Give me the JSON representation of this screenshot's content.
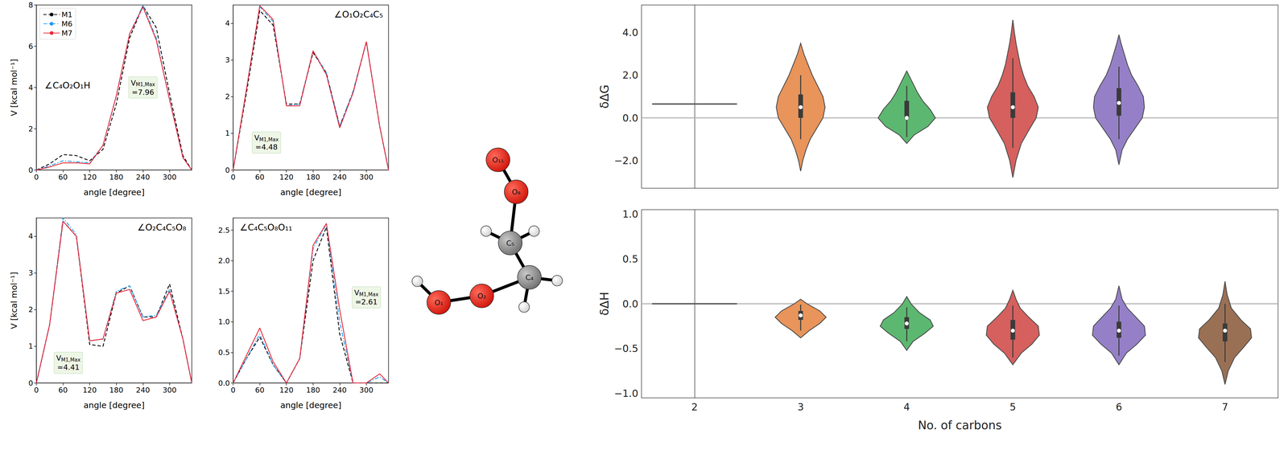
{
  "chart_data": [
    {
      "type": "line",
      "title": "∠C₄O₂O₁H",
      "xlabel": "angle [degree]",
      "ylabel": "V [kcal mol⁻¹]",
      "x": [
        0,
        30,
        60,
        90,
        120,
        150,
        180,
        210,
        240,
        270,
        300,
        330,
        350
      ],
      "xlim": [
        0,
        350
      ],
      "xticks": [
        0,
        60,
        120,
        180,
        240,
        300
      ],
      "ylim": [
        0,
        8
      ],
      "yticks": [
        0,
        2,
        4,
        6,
        8
      ],
      "legend": "upper left",
      "annotation": {
        "text": "V",
        "subscript": "M1,Max",
        "label": "=7.96"
      },
      "series": [
        {
          "name": "M1",
          "color": "#000000",
          "line_style": "dashed",
          "values": [
            0,
            0.3,
            0.75,
            0.7,
            0.45,
            1.0,
            3.2,
            6.4,
            7.96,
            6.9,
            3.7,
            0.7,
            0
          ]
        },
        {
          "name": "M6",
          "color": "#1e9bf0",
          "line_style": "dashdot",
          "values": [
            0,
            0.2,
            0.45,
            0.4,
            0.35,
            1.2,
            3.6,
            6.6,
            7.98,
            6.4,
            3.4,
            0.6,
            0
          ]
        },
        {
          "name": "M7",
          "color": "#e8273a",
          "line_style": "solid",
          "values": [
            0,
            0.15,
            0.35,
            0.35,
            0.3,
            1.2,
            3.6,
            6.6,
            7.9,
            6.3,
            3.4,
            0.6,
            0
          ]
        }
      ]
    },
    {
      "type": "line",
      "title": "∠O₁O₂C₄C₅",
      "xlabel": "angle [degree]",
      "x": [
        0,
        30,
        60,
        90,
        120,
        150,
        180,
        210,
        240,
        270,
        300,
        330,
        350
      ],
      "xlim": [
        0,
        350
      ],
      "xticks": [
        0,
        60,
        120,
        180,
        240,
        300
      ],
      "ylim": [
        0,
        4.5
      ],
      "yticks": [
        0,
        1,
        2,
        3,
        4
      ],
      "annotation": {
        "text": "V",
        "subscript": "M1,Max",
        "label": "=4.48"
      },
      "series": [
        {
          "name": "M1",
          "color": "#000000",
          "line_style": "dashed",
          "values": [
            0,
            2.1,
            4.35,
            3.95,
            1.8,
            1.8,
            3.2,
            2.65,
            1.2,
            2.1,
            3.5,
            1.2,
            0
          ]
        },
        {
          "name": "M6",
          "color": "#1e9bf0",
          "line_style": "dashdot",
          "values": [
            0,
            2.2,
            4.45,
            4.05,
            1.75,
            1.8,
            3.25,
            2.65,
            1.2,
            2.15,
            3.5,
            1.2,
            0
          ]
        },
        {
          "name": "M7",
          "color": "#e8273a",
          "line_style": "solid",
          "values": [
            0,
            2.2,
            4.48,
            4.1,
            1.75,
            1.75,
            3.25,
            2.6,
            1.15,
            2.1,
            3.5,
            1.2,
            0
          ]
        }
      ]
    },
    {
      "type": "line",
      "title": "∠O₂C₄C₅O₈",
      "xlabel": "angle [degree]",
      "ylabel": "V [kcal mol⁻¹]",
      "x": [
        0,
        30,
        60,
        90,
        120,
        150,
        180,
        210,
        240,
        270,
        300,
        330,
        350
      ],
      "xlim": [
        0,
        350
      ],
      "xticks": [
        0,
        60,
        120,
        180,
        240,
        300
      ],
      "ylim": [
        0,
        4.5
      ],
      "yticks": [
        0,
        1,
        2,
        3,
        4
      ],
      "annotation": {
        "text": "V",
        "subscript": "M1,Max",
        "label": "=4.41"
      },
      "series": [
        {
          "name": "M1",
          "color": "#000000",
          "line_style": "dashed",
          "values": [
            0,
            1.6,
            4.41,
            4.0,
            1.05,
            1.0,
            2.45,
            2.65,
            1.8,
            1.8,
            2.7,
            1.2,
            0
          ]
        },
        {
          "name": "M6",
          "color": "#1e9bf0",
          "line_style": "dashdot",
          "values": [
            0,
            1.6,
            4.5,
            4.05,
            1.15,
            1.2,
            2.5,
            2.65,
            1.8,
            1.85,
            2.55,
            1.2,
            0
          ]
        },
        {
          "name": "M7",
          "color": "#e8273a",
          "line_style": "solid",
          "values": [
            0,
            1.6,
            4.41,
            4.0,
            1.15,
            1.2,
            2.45,
            2.55,
            1.7,
            1.8,
            2.5,
            1.2,
            0
          ]
        }
      ]
    },
    {
      "type": "line",
      "title": "∠C₄C₅O₈O₁₁",
      "xlabel": "angle [degree]",
      "x": [
        0,
        30,
        60,
        90,
        120,
        150,
        180,
        210,
        240,
        270,
        300,
        330,
        350
      ],
      "xlim": [
        0,
        350
      ],
      "xticks": [
        0,
        60,
        120,
        180,
        240,
        300
      ],
      "ylim": [
        0,
        2.7
      ],
      "yticks": [
        {
          "value": 0,
          "label": "0.0"
        },
        {
          "value": 0.5,
          "label": "0.5"
        },
        {
          "value": 1,
          "label": "1.0"
        },
        {
          "value": 1.5,
          "label": "1.5"
        },
        {
          "value": 2,
          "label": "2.0"
        },
        {
          "value": 2.5,
          "label": "2.5"
        }
      ],
      "annotation": {
        "text": "V",
        "subscript": "M1,Max",
        "label": "=2.61"
      },
      "series": [
        {
          "name": "M1",
          "color": "#000000",
          "line_style": "dashed",
          "values": [
            0,
            0.4,
            0.75,
            0.3,
            0,
            0.4,
            2.0,
            2.55,
            0.8,
            0,
            0,
            0,
            0
          ]
        },
        {
          "name": "M6",
          "color": "#1e9bf0",
          "line_style": "dashdot",
          "values": [
            0,
            0.4,
            0.8,
            0.3,
            0,
            0.4,
            2.2,
            2.6,
            1.0,
            0,
            0,
            0.1,
            0
          ]
        },
        {
          "name": "M7",
          "color": "#e8273a",
          "line_style": "solid",
          "values": [
            0,
            0.45,
            0.9,
            0.35,
            0,
            0.4,
            2.25,
            2.61,
            1.2,
            0,
            0,
            0.15,
            0
          ]
        }
      ]
    },
    {
      "type": "violin",
      "ylabel": "δΔG",
      "categories": [
        "2",
        "3",
        "4",
        "5",
        "6",
        "7"
      ],
      "ylim": [
        -3.3,
        5.3
      ],
      "yticks": [
        {
          "value": -2,
          "label": "−2.0"
        },
        {
          "value": 0,
          "label": "0.0"
        },
        {
          "value": 2,
          "label": "2.0"
        },
        {
          "value": 4,
          "label": "4.0"
        }
      ],
      "tick_labels": "y",
      "reference_line": 0,
      "violins": [
        {
          "category": "2",
          "color": "#555555",
          "single": 0.65
        },
        {
          "category": "3",
          "color": "#e8945a",
          "y": [
            -2.5,
            -2,
            -1.5,
            -1,
            -0.5,
            0,
            0.5,
            1,
            1.5,
            2,
            2.5,
            3,
            3.5
          ],
          "half_width": [
            0,
            0.02,
            0.05,
            0.09,
            0.15,
            0.21,
            0.23,
            0.21,
            0.16,
            0.11,
            0.07,
            0.03,
            0
          ],
          "box": {
            "whisker_low": -1.0,
            "q1": 0.0,
            "median": 0.5,
            "q3": 1.1,
            "whisker_high": 2.0
          }
        },
        {
          "category": "4",
          "color": "#5cb870",
          "y": [
            -1.2,
            -0.8,
            -0.4,
            0,
            0.4,
            0.8,
            1.2,
            1.6,
            2.0,
            2.2
          ],
          "half_width": [
            0,
            0.07,
            0.2,
            0.27,
            0.22,
            0.15,
            0.1,
            0.06,
            0.02,
            0
          ],
          "box": {
            "whisker_low": -0.9,
            "q1": -0.05,
            "median": 0.0,
            "q3": 0.8,
            "whisker_high": 1.5
          }
        },
        {
          "category": "5",
          "color": "#d5605e",
          "y": [
            -2.8,
            -2,
            -1.2,
            -0.5,
            0,
            0.5,
            1,
            1.5,
            2,
            2.5,
            3,
            3.5,
            4,
            4.6
          ],
          "half_width": [
            0,
            0.03,
            0.08,
            0.16,
            0.22,
            0.24,
            0.2,
            0.14,
            0.1,
            0.07,
            0.05,
            0.03,
            0.015,
            0
          ],
          "box": {
            "whisker_low": -1.4,
            "q1": 0.0,
            "median": 0.5,
            "q3": 1.2,
            "whisker_high": 2.8
          }
        },
        {
          "category": "6",
          "color": "#9580c8",
          "y": [
            -2.2,
            -1.5,
            -1,
            -0.5,
            0,
            0.5,
            1,
            1.5,
            2,
            2.5,
            3,
            3.5,
            3.9
          ],
          "half_width": [
            0,
            0.03,
            0.08,
            0.15,
            0.22,
            0.24,
            0.23,
            0.18,
            0.12,
            0.08,
            0.05,
            0.02,
            0
          ],
          "box": {
            "whisker_low": -1.0,
            "q1": 0.1,
            "median": 0.7,
            "q3": 1.4,
            "whisker_high": 2.4
          }
        }
      ]
    },
    {
      "type": "violin",
      "xlabel": "No. of carbons",
      "ylabel": "δΔH",
      "categories": [
        "2",
        "3",
        "4",
        "5",
        "6",
        "7"
      ],
      "ylim": [
        -1.05,
        1.05
      ],
      "yticks": [
        {
          "value": -1,
          "label": "−1.0"
        },
        {
          "value": -0.5,
          "label": "−0.5"
        },
        {
          "value": 0,
          "label": "0.0"
        },
        {
          "value": 0.5,
          "label": "0.5"
        },
        {
          "value": 1,
          "label": "1.0"
        }
      ],
      "reference_line": 0,
      "violins": [
        {
          "category": "2",
          "color": "#555555",
          "single": 0
        },
        {
          "category": "3",
          "color": "#e8945a",
          "y": [
            -0.38,
            -0.3,
            -0.22,
            -0.15,
            -0.08,
            0,
            0.05
          ],
          "half_width": [
            0,
            0.08,
            0.18,
            0.24,
            0.18,
            0.06,
            0
          ],
          "box": {
            "whisker_low": -0.3,
            "q1": -0.18,
            "median": -0.13,
            "q3": -0.08,
            "whisker_high": -0.01
          }
        },
        {
          "category": "4",
          "color": "#5cb870",
          "y": [
            -0.52,
            -0.42,
            -0.33,
            -0.25,
            -0.18,
            -0.1,
            0,
            0.08
          ],
          "half_width": [
            0,
            0.06,
            0.17,
            0.25,
            0.22,
            0.12,
            0.04,
            0
          ],
          "box": {
            "whisker_low": -0.42,
            "q1": -0.28,
            "median": -0.22,
            "q3": -0.15,
            "whisker_high": -0.04
          }
        },
        {
          "category": "5",
          "color": "#d5605e",
          "y": [
            -0.68,
            -0.55,
            -0.45,
            -0.35,
            -0.25,
            -0.15,
            -0.05,
            0.05,
            0.15
          ],
          "half_width": [
            0,
            0.08,
            0.18,
            0.25,
            0.24,
            0.15,
            0.07,
            0.03,
            0
          ],
          "box": {
            "whisker_low": -0.6,
            "q1": -0.4,
            "median": -0.3,
            "q3": -0.18,
            "whisker_high": -0.02
          }
        },
        {
          "category": "6",
          "color": "#9580c8",
          "y": [
            -0.68,
            -0.55,
            -0.45,
            -0.35,
            -0.25,
            -0.15,
            -0.05,
            0.05,
            0.2
          ],
          "half_width": [
            0,
            0.07,
            0.17,
            0.25,
            0.24,
            0.16,
            0.08,
            0.03,
            0
          ],
          "box": {
            "whisker_low": -0.58,
            "q1": -0.38,
            "median": -0.3,
            "q3": -0.2,
            "whisker_high": -0.02
          }
        },
        {
          "category": "7",
          "color": "#9a7055",
          "y": [
            -0.9,
            -0.75,
            -0.6,
            -0.48,
            -0.38,
            -0.28,
            -0.18,
            -0.05,
            0.1,
            0.25
          ],
          "half_width": [
            0,
            0.03,
            0.09,
            0.18,
            0.25,
            0.24,
            0.15,
            0.06,
            0.02,
            0
          ],
          "box": {
            "whisker_low": -0.65,
            "q1": -0.42,
            "median": -0.3,
            "q3": -0.22,
            "whisker_high": 0.0
          }
        }
      ]
    }
  ],
  "molecule": {
    "atoms": [
      "O₁",
      "O₂",
      "C₄",
      "C₅",
      "O₈",
      "O₁₁"
    ]
  }
}
